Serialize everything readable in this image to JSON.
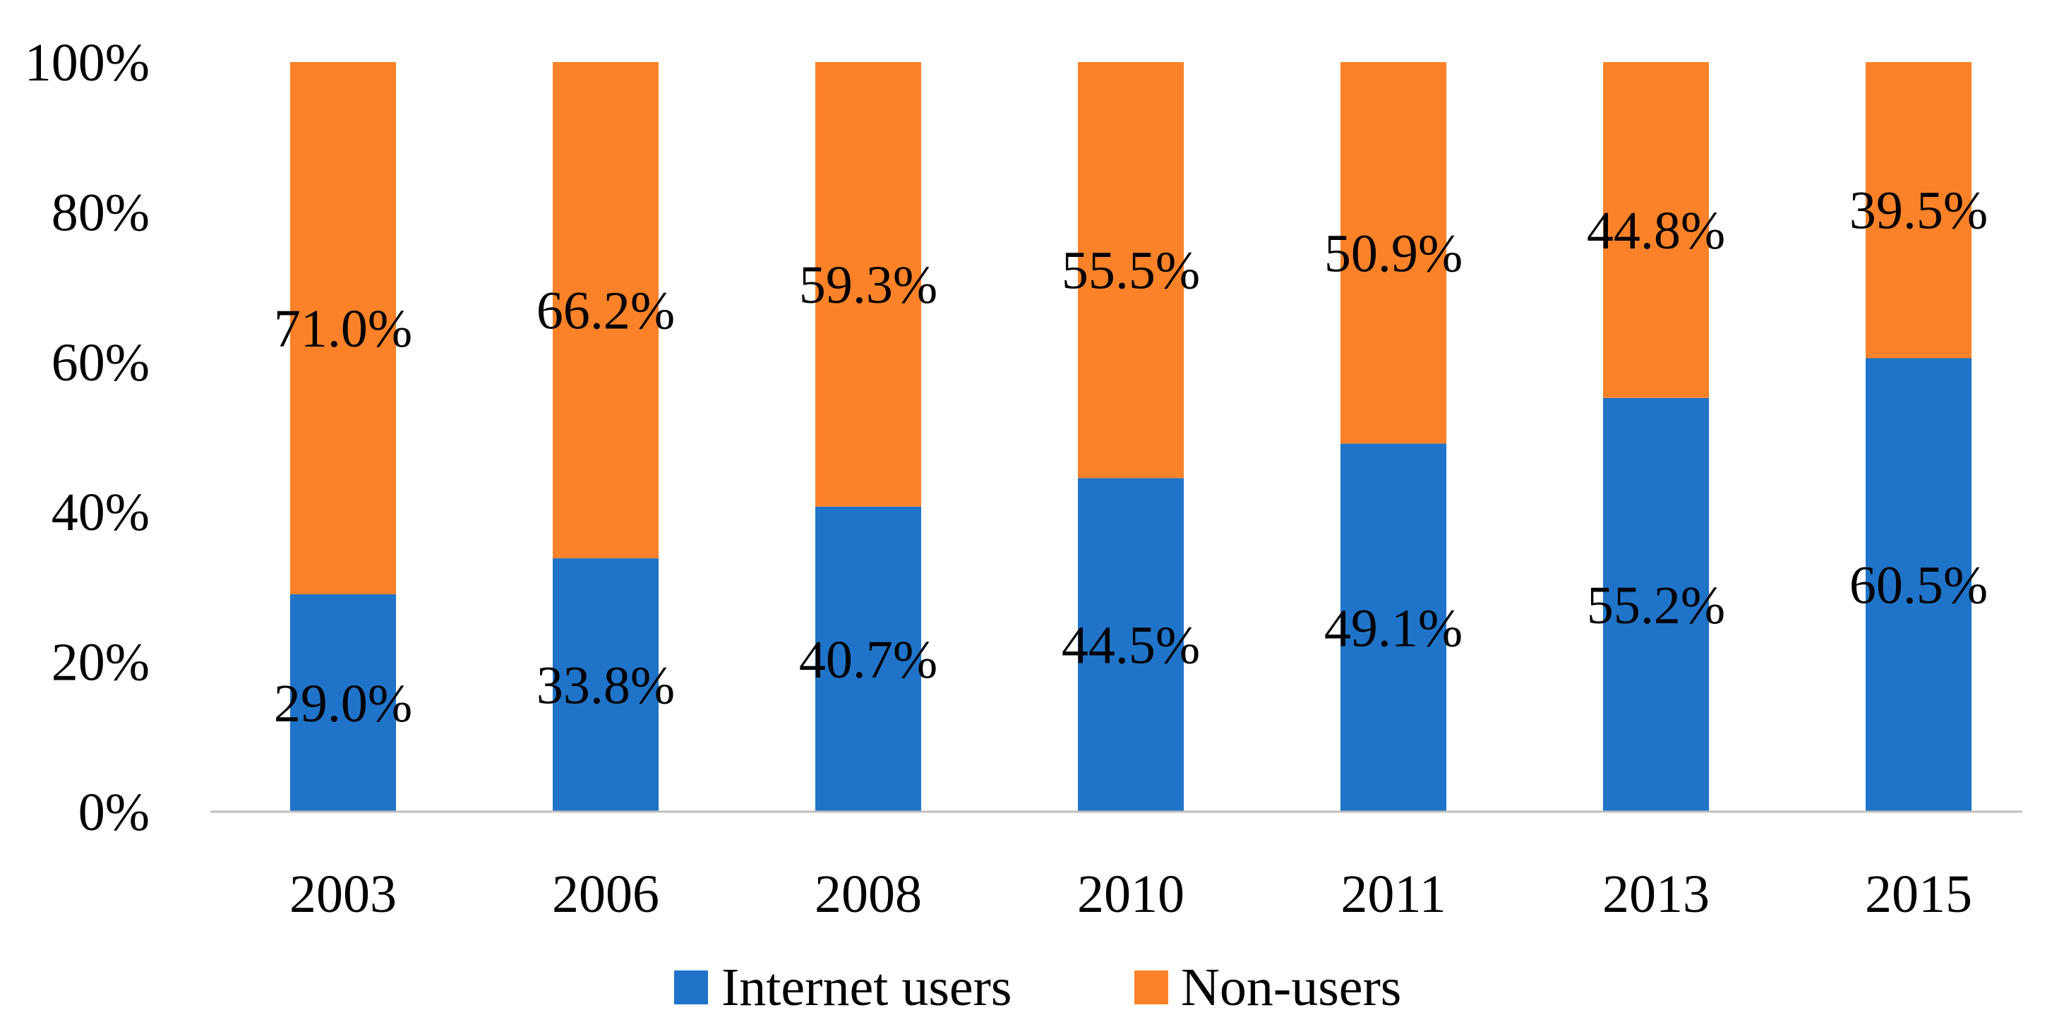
{
  "chart_data": {
    "type": "bar",
    "stacked": true,
    "title": "",
    "xlabel": "",
    "ylabel": "",
    "ylim": [
      0,
      100
    ],
    "yticks": [
      "0%",
      "20%",
      "40%",
      "60%",
      "80%",
      "100%"
    ],
    "ytick_values": [
      0,
      20,
      40,
      60,
      80,
      100
    ],
    "categories": [
      "2003",
      "2006",
      "2008",
      "2010",
      "2011",
      "2013",
      "2015"
    ],
    "series": [
      {
        "name": "Internet users",
        "color": "#1F74C9",
        "values": [
          29.0,
          33.8,
          40.7,
          44.5,
          49.1,
          55.2,
          60.5
        ],
        "labels": [
          "29.0%",
          "33.8%",
          "40.7%",
          "44.5%",
          "49.1%",
          "55.2%",
          "60.5%"
        ]
      },
      {
        "name": "Non-users",
        "color": "#FB8228",
        "values": [
          71.0,
          66.2,
          59.3,
          55.5,
          50.9,
          44.8,
          39.5
        ],
        "labels": [
          "71.0%",
          "66.2%",
          "59.3%",
          "55.5%",
          "50.9%",
          "44.8%",
          "39.5%"
        ]
      }
    ],
    "grid": false,
    "legend_position": "bottom-center",
    "axis_color": "#BFBFBF"
  }
}
